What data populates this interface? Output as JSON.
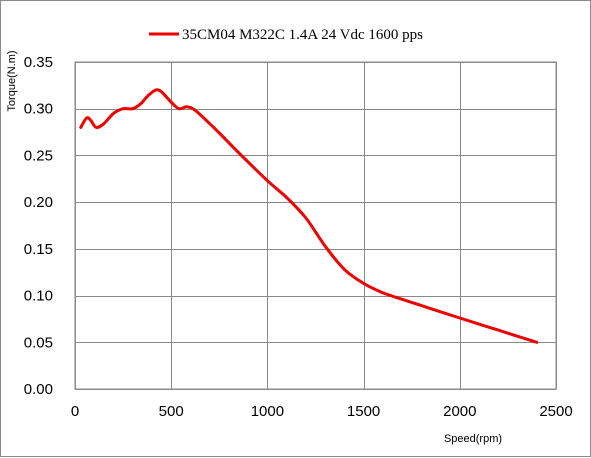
{
  "chart_data": {
    "type": "line",
    "title": "",
    "xlabel": "Speed(rpm)",
    "ylabel": "Torque(N.m)",
    "xlim": [
      0,
      2500
    ],
    "ylim": [
      0,
      0.35
    ],
    "x_ticks": [
      0,
      500,
      1000,
      1500,
      2000,
      2500
    ],
    "x_tick_labels": [
      "0",
      "500",
      "1000",
      "1500",
      "2000",
      "2500"
    ],
    "y_ticks": [
      0,
      0.05,
      0.1,
      0.15,
      0.2,
      0.25,
      0.3,
      0.35
    ],
    "y_tick_labels": [
      "0.00",
      "0.05",
      "0.10",
      "0.15",
      "0.20",
      "0.25",
      "0.30",
      "0.35"
    ],
    "grid": true,
    "legend_position": "top-center",
    "series": [
      {
        "name": "35CM04 M322C 1.4A 24 Vdc  1600 pps",
        "color": "#ee0000",
        "x": [
          30,
          60,
          80,
          110,
          150,
          200,
          250,
          300,
          340,
          380,
          420,
          450,
          500,
          540,
          580,
          620,
          680,
          750,
          850,
          1000,
          1100,
          1200,
          1300,
          1400,
          1500,
          1600,
          1700,
          1850,
          2000,
          2200,
          2400
        ],
        "y": [
          0.28,
          0.29,
          0.288,
          0.28,
          0.284,
          0.295,
          0.3,
          0.3,
          0.305,
          0.314,
          0.32,
          0.318,
          0.307,
          0.3,
          0.302,
          0.299,
          0.288,
          0.274,
          0.253,
          0.223,
          0.205,
          0.183,
          0.153,
          0.128,
          0.113,
          0.103,
          0.096,
          0.086,
          0.076,
          0.063,
          0.05
        ]
      }
    ]
  }
}
